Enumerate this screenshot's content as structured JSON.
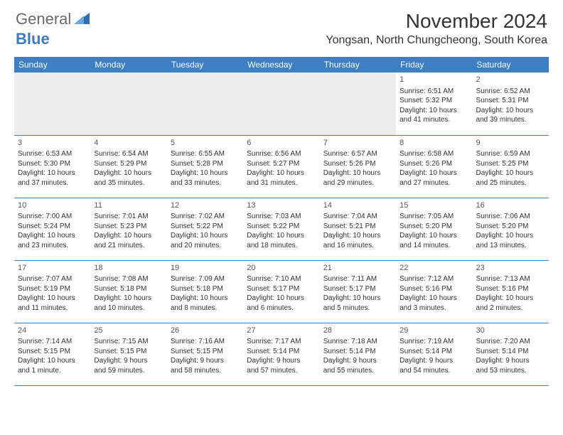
{
  "logo": {
    "text1": "General",
    "text2": "Blue"
  },
  "header": {
    "title": "November 2024",
    "location": "Yongsan, North Chungcheong, South Korea"
  },
  "colors": {
    "header_blue": "#3d7fc2",
    "logo_blue": "#3d7abf",
    "logo_gray": "#6a6a6a",
    "text": "#333333",
    "empty_bg": "#ededed"
  },
  "dayNames": [
    "Sunday",
    "Monday",
    "Tuesday",
    "Wednesday",
    "Thursday",
    "Friday",
    "Saturday"
  ],
  "weeks": [
    [
      null,
      null,
      null,
      null,
      null,
      {
        "d": "1",
        "sr": "Sunrise: 6:51 AM",
        "ss": "Sunset: 5:32 PM",
        "dl1": "Daylight: 10 hours",
        "dl2": "and 41 minutes."
      },
      {
        "d": "2",
        "sr": "Sunrise: 6:52 AM",
        "ss": "Sunset: 5:31 PM",
        "dl1": "Daylight: 10 hours",
        "dl2": "and 39 minutes."
      }
    ],
    [
      {
        "d": "3",
        "sr": "Sunrise: 6:53 AM",
        "ss": "Sunset: 5:30 PM",
        "dl1": "Daylight: 10 hours",
        "dl2": "and 37 minutes."
      },
      {
        "d": "4",
        "sr": "Sunrise: 6:54 AM",
        "ss": "Sunset: 5:29 PM",
        "dl1": "Daylight: 10 hours",
        "dl2": "and 35 minutes."
      },
      {
        "d": "5",
        "sr": "Sunrise: 6:55 AM",
        "ss": "Sunset: 5:28 PM",
        "dl1": "Daylight: 10 hours",
        "dl2": "and 33 minutes."
      },
      {
        "d": "6",
        "sr": "Sunrise: 6:56 AM",
        "ss": "Sunset: 5:27 PM",
        "dl1": "Daylight: 10 hours",
        "dl2": "and 31 minutes."
      },
      {
        "d": "7",
        "sr": "Sunrise: 6:57 AM",
        "ss": "Sunset: 5:26 PM",
        "dl1": "Daylight: 10 hours",
        "dl2": "and 29 minutes."
      },
      {
        "d": "8",
        "sr": "Sunrise: 6:58 AM",
        "ss": "Sunset: 5:26 PM",
        "dl1": "Daylight: 10 hours",
        "dl2": "and 27 minutes."
      },
      {
        "d": "9",
        "sr": "Sunrise: 6:59 AM",
        "ss": "Sunset: 5:25 PM",
        "dl1": "Daylight: 10 hours",
        "dl2": "and 25 minutes."
      }
    ],
    [
      {
        "d": "10",
        "sr": "Sunrise: 7:00 AM",
        "ss": "Sunset: 5:24 PM",
        "dl1": "Daylight: 10 hours",
        "dl2": "and 23 minutes."
      },
      {
        "d": "11",
        "sr": "Sunrise: 7:01 AM",
        "ss": "Sunset: 5:23 PM",
        "dl1": "Daylight: 10 hours",
        "dl2": "and 21 minutes."
      },
      {
        "d": "12",
        "sr": "Sunrise: 7:02 AM",
        "ss": "Sunset: 5:22 PM",
        "dl1": "Daylight: 10 hours",
        "dl2": "and 20 minutes."
      },
      {
        "d": "13",
        "sr": "Sunrise: 7:03 AM",
        "ss": "Sunset: 5:22 PM",
        "dl1": "Daylight: 10 hours",
        "dl2": "and 18 minutes."
      },
      {
        "d": "14",
        "sr": "Sunrise: 7:04 AM",
        "ss": "Sunset: 5:21 PM",
        "dl1": "Daylight: 10 hours",
        "dl2": "and 16 minutes."
      },
      {
        "d": "15",
        "sr": "Sunrise: 7:05 AM",
        "ss": "Sunset: 5:20 PM",
        "dl1": "Daylight: 10 hours",
        "dl2": "and 14 minutes."
      },
      {
        "d": "16",
        "sr": "Sunrise: 7:06 AM",
        "ss": "Sunset: 5:20 PM",
        "dl1": "Daylight: 10 hours",
        "dl2": "and 13 minutes."
      }
    ],
    [
      {
        "d": "17",
        "sr": "Sunrise: 7:07 AM",
        "ss": "Sunset: 5:19 PM",
        "dl1": "Daylight: 10 hours",
        "dl2": "and 11 minutes."
      },
      {
        "d": "18",
        "sr": "Sunrise: 7:08 AM",
        "ss": "Sunset: 5:18 PM",
        "dl1": "Daylight: 10 hours",
        "dl2": "and 10 minutes."
      },
      {
        "d": "19",
        "sr": "Sunrise: 7:09 AM",
        "ss": "Sunset: 5:18 PM",
        "dl1": "Daylight: 10 hours",
        "dl2": "and 8 minutes."
      },
      {
        "d": "20",
        "sr": "Sunrise: 7:10 AM",
        "ss": "Sunset: 5:17 PM",
        "dl1": "Daylight: 10 hours",
        "dl2": "and 6 minutes."
      },
      {
        "d": "21",
        "sr": "Sunrise: 7:11 AM",
        "ss": "Sunset: 5:17 PM",
        "dl1": "Daylight: 10 hours",
        "dl2": "and 5 minutes."
      },
      {
        "d": "22",
        "sr": "Sunrise: 7:12 AM",
        "ss": "Sunset: 5:16 PM",
        "dl1": "Daylight: 10 hours",
        "dl2": "and 3 minutes."
      },
      {
        "d": "23",
        "sr": "Sunrise: 7:13 AM",
        "ss": "Sunset: 5:16 PM",
        "dl1": "Daylight: 10 hours",
        "dl2": "and 2 minutes."
      }
    ],
    [
      {
        "d": "24",
        "sr": "Sunrise: 7:14 AM",
        "ss": "Sunset: 5:15 PM",
        "dl1": "Daylight: 10 hours",
        "dl2": "and 1 minute."
      },
      {
        "d": "25",
        "sr": "Sunrise: 7:15 AM",
        "ss": "Sunset: 5:15 PM",
        "dl1": "Daylight: 9 hours",
        "dl2": "and 59 minutes."
      },
      {
        "d": "26",
        "sr": "Sunrise: 7:16 AM",
        "ss": "Sunset: 5:15 PM",
        "dl1": "Daylight: 9 hours",
        "dl2": "and 58 minutes."
      },
      {
        "d": "27",
        "sr": "Sunrise: 7:17 AM",
        "ss": "Sunset: 5:14 PM",
        "dl1": "Daylight: 9 hours",
        "dl2": "and 57 minutes."
      },
      {
        "d": "28",
        "sr": "Sunrise: 7:18 AM",
        "ss": "Sunset: 5:14 PM",
        "dl1": "Daylight: 9 hours",
        "dl2": "and 55 minutes."
      },
      {
        "d": "29",
        "sr": "Sunrise: 7:19 AM",
        "ss": "Sunset: 5:14 PM",
        "dl1": "Daylight: 9 hours",
        "dl2": "and 54 minutes."
      },
      {
        "d": "30",
        "sr": "Sunrise: 7:20 AM",
        "ss": "Sunset: 5:14 PM",
        "dl1": "Daylight: 9 hours",
        "dl2": "and 53 minutes."
      }
    ]
  ]
}
